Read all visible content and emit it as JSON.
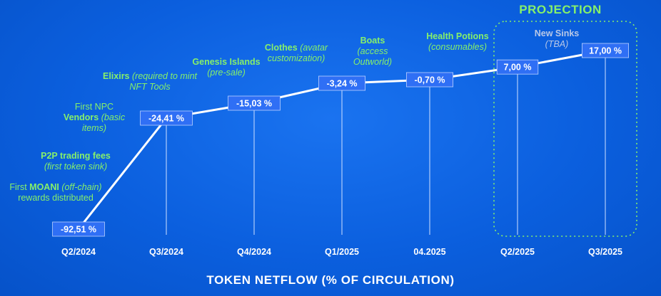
{
  "chart_data": {
    "type": "line",
    "categories": [
      "Q2/2024",
      "Q3/2024",
      "Q4/2024",
      "Q1/2025",
      "04.2025",
      "Q2/2025",
      "Q3/2025"
    ],
    "values": [
      -92.51,
      -24.41,
      -15.03,
      -3.24,
      -0.7,
      7.0,
      17.0
    ],
    "value_labels": [
      "-92,51 %",
      "-24,41 %",
      "-15,03 %",
      "-3,24 %",
      "-0,70 %",
      "7,00 %",
      "17,00 %"
    ],
    "xlabel": "TOKEN NETFLOW (% OF CIRCULATION)",
    "projection_label": "PROJECTION",
    "projection_categories": [
      "Q2/2025",
      "Q3/2025"
    ],
    "grid": false,
    "colors": {
      "line": "#ffffff",
      "label_box": "#2f6ff5",
      "annotation": "#86f06a",
      "projection_box": "#86f06a"
    }
  },
  "annotations": {
    "q2_2024": {
      "pre": "First ",
      "bold": "MOANI",
      "italic": " (off-chain)",
      "post": " rewards distributed"
    },
    "p2p": {
      "bold": "P2P trading fees",
      "italic": "(first token sink)"
    },
    "q3_2024": {
      "pre": "First NPC",
      "bold": "Vendors",
      "italic": " (basic items)"
    },
    "elixirs": {
      "bold": "Elixirs",
      "italic": " (required to mint NFT Tools"
    },
    "q4_2024": {
      "bold": "Genesis Islands",
      "italic": "(pre-sale)"
    },
    "q1_2025": {
      "bold": "Clothes",
      "italic": " (avatar customization)"
    },
    "boats": {
      "bold": "Boats",
      "italic": "(access Outworld)"
    },
    "health": {
      "bold": "Health Potions",
      "italic": "(consumables)"
    },
    "sinks": {
      "bold": "New Sinks",
      "italic": "(TBA)"
    }
  }
}
